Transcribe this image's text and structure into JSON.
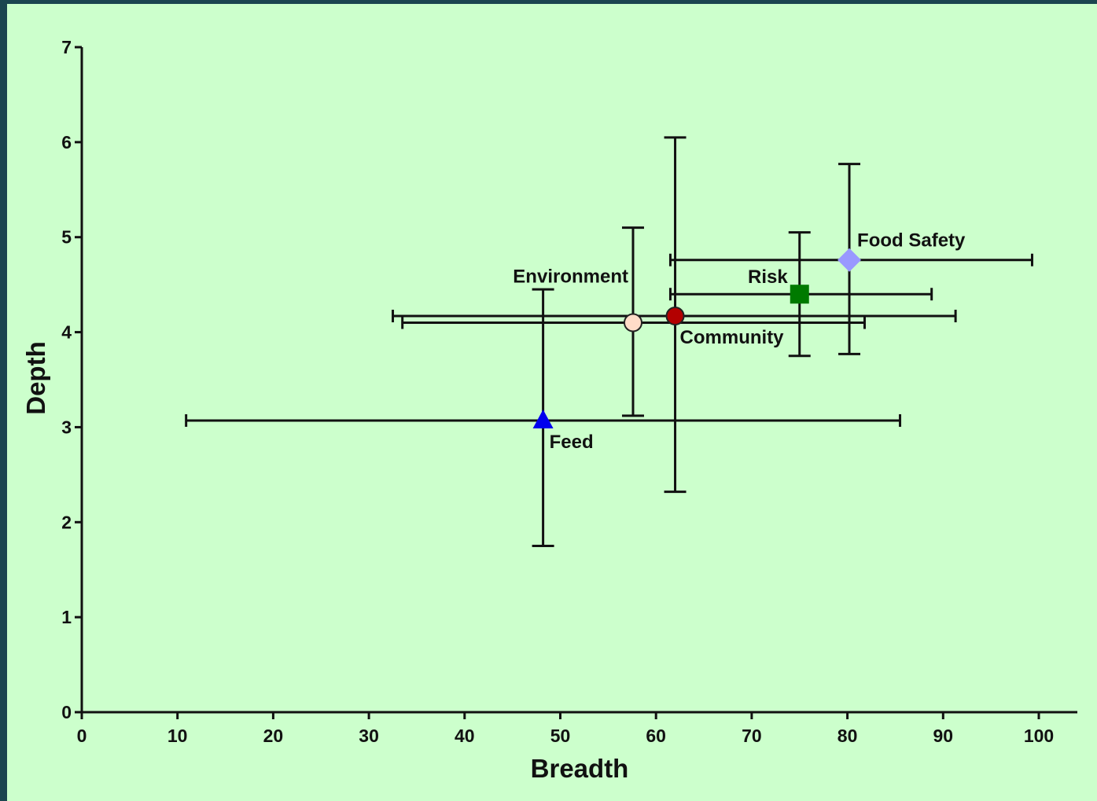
{
  "chart_data": {
    "type": "scatter",
    "xlabel": "Breadth",
    "ylabel": "Depth",
    "xlim": [
      0,
      100
    ],
    "ylim": [
      0,
      7
    ],
    "x_ticks": [
      0,
      10,
      20,
      30,
      40,
      50,
      60,
      70,
      80,
      90,
      100
    ],
    "y_ticks": [
      0,
      1,
      2,
      3,
      4,
      5,
      6,
      7
    ],
    "grid": false,
    "legend": "none",
    "colors": {
      "background": "#ccffcc",
      "frame": "#1b4550",
      "axis": "#111111",
      "error_bar": "#111111"
    },
    "series": [
      {
        "name": "Food Safety",
        "x": 80.2,
        "y": 4.76,
        "x_err_low": 61.5,
        "x_err_high": 99.3,
        "y_err_low": 3.77,
        "y_err_high": 5.77,
        "marker": "diamond",
        "color": "#9999ff"
      },
      {
        "name": "Risk",
        "x": 75.0,
        "y": 4.4,
        "x_err_low": 61.5,
        "x_err_high": 88.8,
        "y_err_low": 3.75,
        "y_err_high": 5.05,
        "marker": "square",
        "color": "#007a00"
      },
      {
        "name": "Community",
        "x": 62.0,
        "y": 4.17,
        "x_err_low": 32.5,
        "x_err_high": 91.3,
        "y_err_low": 2.32,
        "y_err_high": 6.05,
        "marker": "circle",
        "color": "#b30000"
      },
      {
        "name": "Environment",
        "x": 57.6,
        "y": 4.1,
        "x_err_low": 33.5,
        "x_err_high": 81.8,
        "y_err_low": 3.12,
        "y_err_high": 5.1,
        "marker": "circle",
        "color": "#ffdcc8"
      },
      {
        "name": "Feed",
        "x": 48.2,
        "y": 3.07,
        "x_err_low": 10.9,
        "x_err_high": 85.5,
        "y_err_low": 1.75,
        "y_err_high": 4.45,
        "marker": "triangle",
        "color": "#0000ee"
      }
    ]
  }
}
